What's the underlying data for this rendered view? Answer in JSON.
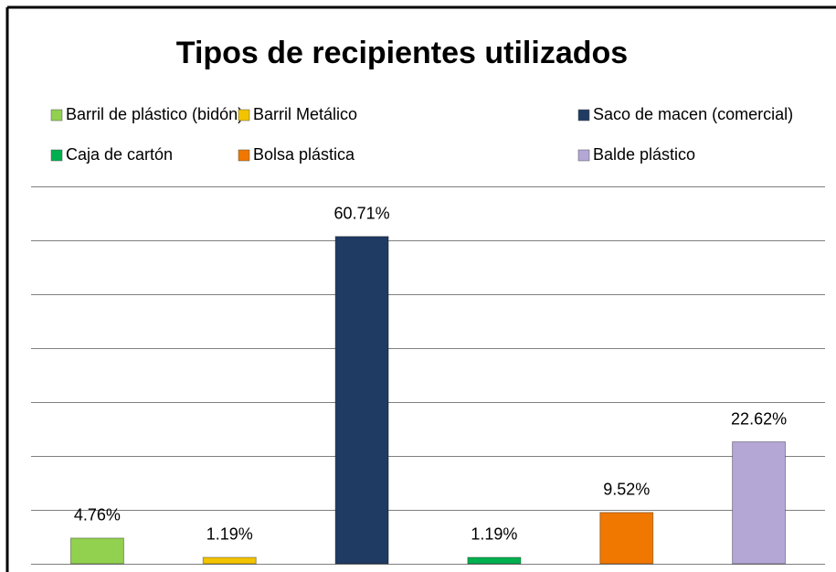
{
  "chart_data": {
    "type": "bar",
    "title": "Tipos de recipientes utilizados",
    "series": [
      {
        "name": "Barril de plástico (bidón)",
        "color": "#92d050",
        "values": [
          4.76
        ],
        "value_labels": [
          "4.76%"
        ]
      },
      {
        "name": "Barril Metálico",
        "color": "#f2c400",
        "values": [
          1.19
        ],
        "value_labels": [
          "1.19%"
        ]
      },
      {
        "name": "Saco de macen (comercial)",
        "color": "#1f3b63",
        "values": [
          60.71
        ],
        "value_labels": [
          "60.71%"
        ]
      },
      {
        "name": "Caja de cartón",
        "color": "#00b050",
        "values": [
          1.19
        ],
        "value_labels": [
          "1.19%"
        ]
      },
      {
        "name": "Bolsa plástica",
        "color": "#f07800",
        "values": [
          9.52
        ],
        "value_labels": [
          "9.52%"
        ]
      },
      {
        "name": "Balde plástico",
        "color": "#b4a7d6",
        "values": [
          22.62
        ],
        "value_labels": [
          "22.62%"
        ]
      }
    ],
    "ylim": [
      0,
      70
    ],
    "yticks": [
      0,
      10,
      20,
      30,
      40,
      50,
      60,
      70
    ],
    "grid": true,
    "legend": "top"
  }
}
